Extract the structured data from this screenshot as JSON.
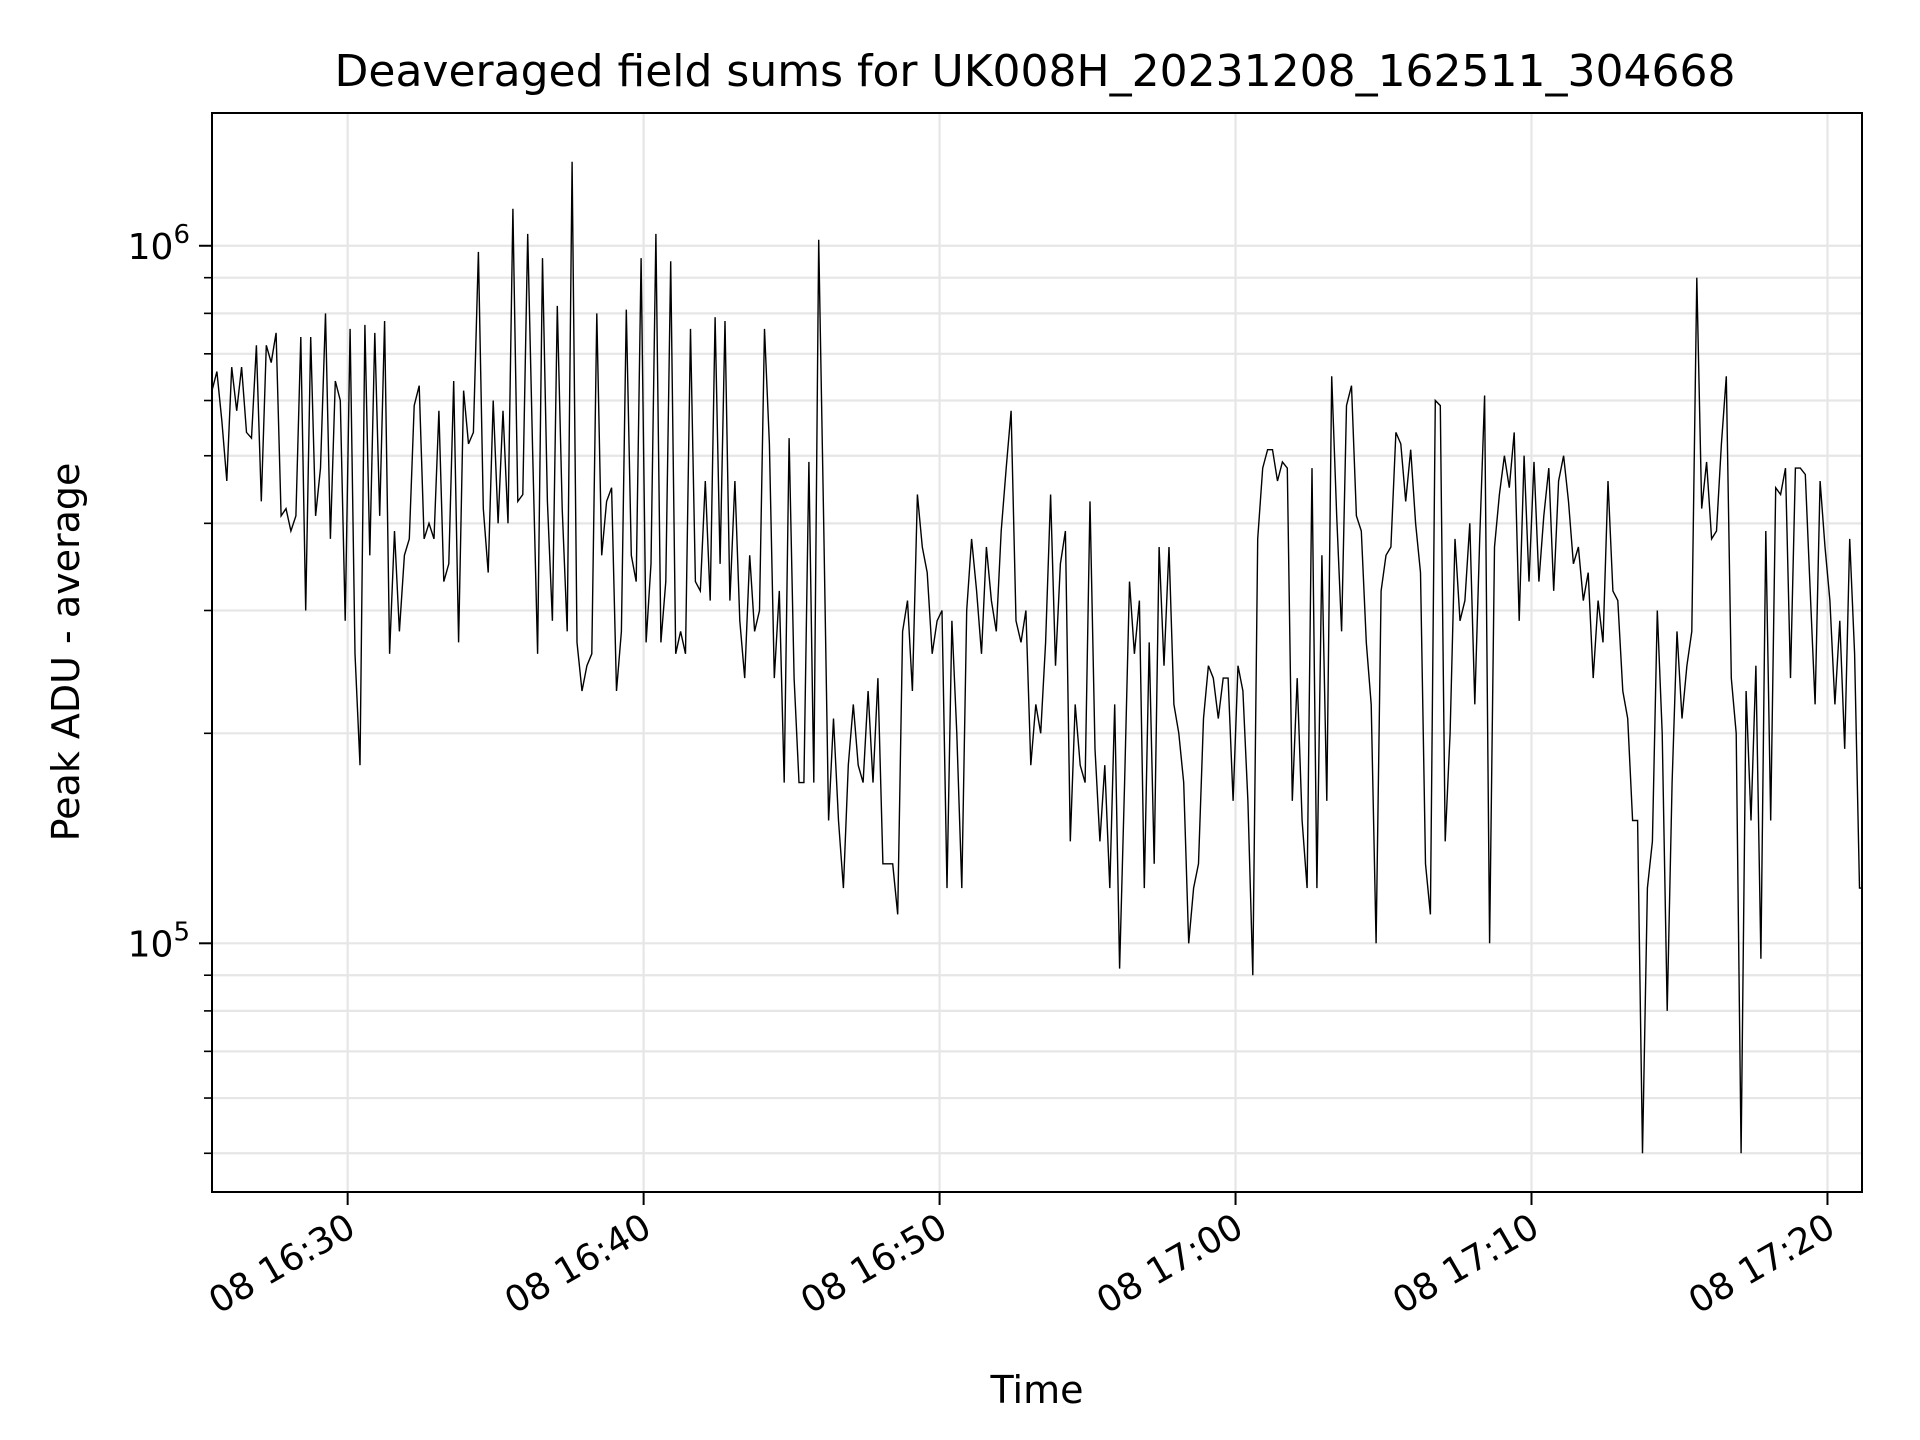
{
  "chart_data": {
    "type": "line",
    "title": "Deaveraged field sums for UK008H_20231208_162511_304668",
    "xlabel": "Time",
    "ylabel": "Peak ADU - average",
    "y_scale": "log",
    "ylim": [
      44000,
      1550000
    ],
    "x_range": [
      "2023-12-08 16:25:25",
      "2023-12-08 17:21:10"
    ],
    "grid": true,
    "line_color": "#000000",
    "grid_color": "#e6e6e6",
    "x_ticks": [
      {
        "t": "2023-12-08 16:30:00",
        "label": "08 16:30"
      },
      {
        "t": "2023-12-08 16:40:00",
        "label": "08 16:40"
      },
      {
        "t": "2023-12-08 16:50:00",
        "label": "08 16:50"
      },
      {
        "t": "2023-12-08 17:00:00",
        "label": "08 17:00"
      },
      {
        "t": "2023-12-08 17:10:00",
        "label": "08 17:10"
      },
      {
        "t": "2023-12-08 17:20:00",
        "label": "08 17:20"
      }
    ],
    "y_ticks": [
      {
        "value": 100000,
        "base": "10",
        "exp": "5"
      },
      {
        "value": 1000000,
        "base": "10",
        "exp": "6"
      }
    ],
    "y_minor_ticks": [
      50000,
      60000,
      70000,
      80000,
      90000,
      200000,
      300000,
      400000,
      500000,
      600000,
      700000,
      800000,
      900000
    ],
    "series": [
      {
        "x": [
          "2023-12-08 16:25:25",
          "2023-12-08 16:25:35",
          "2023-12-08 16:25:45",
          "2023-12-08 16:25:55",
          "2023-12-08 16:26:05",
          "2023-12-08 16:26:15",
          "2023-12-08 16:26:25",
          "2023-12-08 16:26:35",
          "2023-12-08 16:26:45",
          "2023-12-08 16:26:55",
          "2023-12-08 16:27:05",
          "2023-12-08 16:27:15",
          "2023-12-08 16:27:25",
          "2023-12-08 16:27:35",
          "2023-12-08 16:27:45",
          "2023-12-08 16:27:55",
          "2023-12-08 16:28:05",
          "2023-12-08 16:28:15",
          "2023-12-08 16:28:25",
          "2023-12-08 16:28:35",
          "2023-12-08 16:28:45",
          "2023-12-08 16:28:55",
          "2023-12-08 16:29:05",
          "2023-12-08 16:29:15",
          "2023-12-08 16:29:25",
          "2023-12-08 16:29:35",
          "2023-12-08 16:29:45",
          "2023-12-08 16:29:55",
          "2023-12-08 16:30:05",
          "2023-12-08 16:30:15",
          "2023-12-08 16:30:25",
          "2023-12-08 16:30:35",
          "2023-12-08 16:30:45",
          "2023-12-08 16:30:55",
          "2023-12-08 16:31:05",
          "2023-12-08 16:31:15",
          "2023-12-08 16:31:25",
          "2023-12-08 16:31:35",
          "2023-12-08 16:31:45",
          "2023-12-08 16:31:55",
          "2023-12-08 16:32:05",
          "2023-12-08 16:32:15",
          "2023-12-08 16:32:25",
          "2023-12-08 16:32:35",
          "2023-12-08 16:32:45",
          "2023-12-08 16:32:55",
          "2023-12-08 16:33:05",
          "2023-12-08 16:33:15",
          "2023-12-08 16:33:25",
          "2023-12-08 16:33:35",
          "2023-12-08 16:33:45",
          "2023-12-08 16:33:55",
          "2023-12-08 16:34:05",
          "2023-12-08 16:34:15",
          "2023-12-08 16:34:25",
          "2023-12-08 16:34:35",
          "2023-12-08 16:34:45",
          "2023-12-08 16:34:55",
          "2023-12-08 16:35:05",
          "2023-12-08 16:35:15",
          "2023-12-08 16:35:25",
          "2023-12-08 16:35:35",
          "2023-12-08 16:35:45",
          "2023-12-08 16:35:55",
          "2023-12-08 16:36:05",
          "2023-12-08 16:36:15",
          "2023-12-08 16:36:25",
          "2023-12-08 16:36:35",
          "2023-12-08 16:36:45",
          "2023-12-08 16:36:55",
          "2023-12-08 16:37:05",
          "2023-12-08 16:37:15",
          "2023-12-08 16:37:25",
          "2023-12-08 16:37:35",
          "2023-12-08 16:37:45",
          "2023-12-08 16:37:55",
          "2023-12-08 16:38:05",
          "2023-12-08 16:38:15",
          "2023-12-08 16:38:25",
          "2023-12-08 16:38:35",
          "2023-12-08 16:38:45",
          "2023-12-08 16:38:55",
          "2023-12-08 16:39:05",
          "2023-12-08 16:39:15",
          "2023-12-08 16:39:25",
          "2023-12-08 16:39:35",
          "2023-12-08 16:39:45",
          "2023-12-08 16:39:55",
          "2023-12-08 16:40:05",
          "2023-12-08 16:40:15",
          "2023-12-08 16:40:25",
          "2023-12-08 16:40:35",
          "2023-12-08 16:40:45",
          "2023-12-08 16:40:55",
          "2023-12-08 16:41:05",
          "2023-12-08 16:41:15",
          "2023-12-08 16:41:25",
          "2023-12-08 16:41:35",
          "2023-12-08 16:41:45",
          "2023-12-08 16:41:55",
          "2023-12-08 16:42:05",
          "2023-12-08 16:42:15",
          "2023-12-08 16:42:25",
          "2023-12-08 16:42:35",
          "2023-12-08 16:42:45",
          "2023-12-08 16:42:55",
          "2023-12-08 16:43:05",
          "2023-12-08 16:43:15",
          "2023-12-08 16:43:25",
          "2023-12-08 16:43:35",
          "2023-12-08 16:43:45",
          "2023-12-08 16:43:55",
          "2023-12-08 16:44:05",
          "2023-12-08 16:44:15",
          "2023-12-08 16:44:25",
          "2023-12-08 16:44:35",
          "2023-12-08 16:44:45",
          "2023-12-08 16:44:55",
          "2023-12-08 16:45:05",
          "2023-12-08 16:45:15",
          "2023-12-08 16:45:25",
          "2023-12-08 16:45:35",
          "2023-12-08 16:45:45",
          "2023-12-08 16:45:55",
          "2023-12-08 16:46:05",
          "2023-12-08 16:46:15",
          "2023-12-08 16:46:25",
          "2023-12-08 16:46:35",
          "2023-12-08 16:46:45",
          "2023-12-08 16:46:55",
          "2023-12-08 16:47:05",
          "2023-12-08 16:47:15",
          "2023-12-08 16:47:25",
          "2023-12-08 16:47:35",
          "2023-12-08 16:47:45",
          "2023-12-08 16:47:55",
          "2023-12-08 16:48:05",
          "2023-12-08 16:48:15",
          "2023-12-08 16:48:25",
          "2023-12-08 16:48:35",
          "2023-12-08 16:48:45",
          "2023-12-08 16:48:55",
          "2023-12-08 16:49:05",
          "2023-12-08 16:49:15",
          "2023-12-08 16:49:25",
          "2023-12-08 16:49:35",
          "2023-12-08 16:49:45",
          "2023-12-08 16:49:55",
          "2023-12-08 16:50:05",
          "2023-12-08 16:50:15",
          "2023-12-08 16:50:25",
          "2023-12-08 16:50:35",
          "2023-12-08 16:50:45",
          "2023-12-08 16:50:55",
          "2023-12-08 16:51:05",
          "2023-12-08 16:51:15",
          "2023-12-08 16:51:25",
          "2023-12-08 16:51:35",
          "2023-12-08 16:51:45",
          "2023-12-08 16:51:55",
          "2023-12-08 16:52:05",
          "2023-12-08 16:52:15",
          "2023-12-08 16:52:25",
          "2023-12-08 16:52:35",
          "2023-12-08 16:52:45",
          "2023-12-08 16:52:55",
          "2023-12-08 16:53:05",
          "2023-12-08 16:53:15",
          "2023-12-08 16:53:25",
          "2023-12-08 16:53:35",
          "2023-12-08 16:53:45",
          "2023-12-08 16:53:55",
          "2023-12-08 16:54:05",
          "2023-12-08 16:54:15",
          "2023-12-08 16:54:25",
          "2023-12-08 16:54:35",
          "2023-12-08 16:54:45",
          "2023-12-08 16:54:55",
          "2023-12-08 16:55:05",
          "2023-12-08 16:55:15",
          "2023-12-08 16:55:25",
          "2023-12-08 16:55:35",
          "2023-12-08 16:55:45",
          "2023-12-08 16:55:55",
          "2023-12-08 16:56:05",
          "2023-12-08 16:56:15",
          "2023-12-08 16:56:25",
          "2023-12-08 16:56:35",
          "2023-12-08 16:56:45",
          "2023-12-08 16:56:55",
          "2023-12-08 16:57:05",
          "2023-12-08 16:57:15",
          "2023-12-08 16:57:25",
          "2023-12-08 16:57:35",
          "2023-12-08 16:57:45",
          "2023-12-08 16:57:55",
          "2023-12-08 16:58:05",
          "2023-12-08 16:58:15",
          "2023-12-08 16:58:25",
          "2023-12-08 16:58:35",
          "2023-12-08 16:58:45",
          "2023-12-08 16:58:55",
          "2023-12-08 16:59:05",
          "2023-12-08 16:59:15",
          "2023-12-08 16:59:25",
          "2023-12-08 16:59:35",
          "2023-12-08 16:59:45",
          "2023-12-08 16:59:55",
          "2023-12-08 17:00:05",
          "2023-12-08 17:00:15",
          "2023-12-08 17:00:25",
          "2023-12-08 17:00:35",
          "2023-12-08 17:00:45",
          "2023-12-08 17:00:55",
          "2023-12-08 17:01:05",
          "2023-12-08 17:01:15",
          "2023-12-08 17:01:25",
          "2023-12-08 17:01:35",
          "2023-12-08 17:01:45",
          "2023-12-08 17:01:55",
          "2023-12-08 17:02:05",
          "2023-12-08 17:02:15",
          "2023-12-08 17:02:25",
          "2023-12-08 17:02:35",
          "2023-12-08 17:02:45",
          "2023-12-08 17:02:55",
          "2023-12-08 17:03:05",
          "2023-12-08 17:03:15",
          "2023-12-08 17:03:25",
          "2023-12-08 17:03:35",
          "2023-12-08 17:03:45",
          "2023-12-08 17:03:55",
          "2023-12-08 17:04:05",
          "2023-12-08 17:04:15",
          "2023-12-08 17:04:25",
          "2023-12-08 17:04:35",
          "2023-12-08 17:04:45",
          "2023-12-08 17:04:55",
          "2023-12-08 17:05:05",
          "2023-12-08 17:05:15",
          "2023-12-08 17:05:25",
          "2023-12-08 17:05:35",
          "2023-12-08 17:05:45",
          "2023-12-08 17:05:55",
          "2023-12-08 17:06:05",
          "2023-12-08 17:06:15",
          "2023-12-08 17:06:25",
          "2023-12-08 17:06:35",
          "2023-12-08 17:06:45",
          "2023-12-08 17:06:55",
          "2023-12-08 17:07:05",
          "2023-12-08 17:07:15",
          "2023-12-08 17:07:25",
          "2023-12-08 17:07:35",
          "2023-12-08 17:07:45",
          "2023-12-08 17:07:55",
          "2023-12-08 17:08:05",
          "2023-12-08 17:08:15",
          "2023-12-08 17:08:25",
          "2023-12-08 17:08:35",
          "2023-12-08 17:08:45",
          "2023-12-08 17:08:55",
          "2023-12-08 17:09:05",
          "2023-12-08 17:09:15",
          "2023-12-08 17:09:25",
          "2023-12-08 17:09:35",
          "2023-12-08 17:09:45",
          "2023-12-08 17:09:55",
          "2023-12-08 17:10:05",
          "2023-12-08 17:10:15",
          "2023-12-08 17:10:25",
          "2023-12-08 17:10:35",
          "2023-12-08 17:10:45",
          "2023-12-08 17:10:55",
          "2023-12-08 17:11:05",
          "2023-12-08 17:11:15",
          "2023-12-08 17:11:25",
          "2023-12-08 17:11:35",
          "2023-12-08 17:11:45",
          "2023-12-08 17:11:55",
          "2023-12-08 17:12:05",
          "2023-12-08 17:12:15",
          "2023-12-08 17:12:25",
          "2023-12-08 17:12:35",
          "2023-12-08 17:12:45",
          "2023-12-08 17:12:55",
          "2023-12-08 17:13:05",
          "2023-12-08 17:13:15",
          "2023-12-08 17:13:25",
          "2023-12-08 17:13:35",
          "2023-12-08 17:13:45",
          "2023-12-08 17:13:55",
          "2023-12-08 17:14:05",
          "2023-12-08 17:14:15",
          "2023-12-08 17:14:25",
          "2023-12-08 17:14:35",
          "2023-12-08 17:14:45",
          "2023-12-08 17:14:55",
          "2023-12-08 17:15:05",
          "2023-12-08 17:15:15",
          "2023-12-08 17:15:25",
          "2023-12-08 17:15:35",
          "2023-12-08 17:15:45",
          "2023-12-08 17:15:55",
          "2023-12-08 17:16:05",
          "2023-12-08 17:16:15",
          "2023-12-08 17:16:25",
          "2023-12-08 17:16:35",
          "2023-12-08 17:16:45",
          "2023-12-08 17:16:55",
          "2023-12-08 17:17:05",
          "2023-12-08 17:17:15",
          "2023-12-08 17:17:25",
          "2023-12-08 17:17:35",
          "2023-12-08 17:17:45",
          "2023-12-08 17:17:55",
          "2023-12-08 17:18:05",
          "2023-12-08 17:18:15",
          "2023-12-08 17:18:25",
          "2023-12-08 17:18:35",
          "2023-12-08 17:18:45",
          "2023-12-08 17:18:55",
          "2023-12-08 17:19:05",
          "2023-12-08 17:19:15",
          "2023-12-08 17:19:25",
          "2023-12-08 17:19:35",
          "2023-12-08 17:19:45",
          "2023-12-08 17:19:55",
          "2023-12-08 17:20:05",
          "2023-12-08 17:20:15",
          "2023-12-08 17:20:25",
          "2023-12-08 17:20:35",
          "2023-12-08 17:20:45",
          "2023-12-08 17:20:55",
          "2023-12-08 17:21:05",
          "2023-12-08 17:21:10"
        ],
        "values": [
          620000,
          660000,
          560000,
          460000,
          670000,
          580000,
          670000,
          540000,
          530000,
          720000,
          430000,
          720000,
          680000,
          750000,
          410000,
          420000,
          390000,
          410000,
          740000,
          300000,
          740000,
          410000,
          480000,
          800000,
          380000,
          640000,
          600000,
          290000,
          760000,
          260000,
          180000,
          770000,
          360000,
          750000,
          410000,
          780000,
          260000,
          390000,
          280000,
          360000,
          380000,
          590000,
          630000,
          380000,
          400000,
          380000,
          580000,
          330000,
          350000,
          640000,
          270000,
          620000,
          520000,
          540000,
          980000,
          420000,
          340000,
          600000,
          400000,
          580000,
          400000,
          1130000,
          430000,
          440000,
          1040000,
          510000,
          260000,
          960000,
          430000,
          290000,
          820000,
          420000,
          280000,
          1320000,
          270000,
          230000,
          250000,
          260000,
          800000,
          360000,
          430000,
          450000,
          230000,
          280000,
          810000,
          360000,
          330000,
          960000,
          270000,
          350000,
          1040000,
          270000,
          330000,
          950000,
          260000,
          280000,
          260000,
          760000,
          330000,
          320000,
          460000,
          310000,
          790000,
          350000,
          780000,
          310000,
          460000,
          290000,
          240000,
          360000,
          280000,
          300000,
          760000,
          520000,
          240000,
          320000,
          170000,
          530000,
          240000,
          170000,
          170000,
          490000,
          170000,
          1020000,
          400000,
          150000,
          210000,
          150000,
          120000,
          180000,
          220000,
          180000,
          170000,
          230000,
          170000,
          240000,
          130000,
          130000,
          130000,
          110000,
          280000,
          310000,
          230000,
          440000,
          370000,
          340000,
          260000,
          290000,
          300000,
          120000,
          290000,
          200000,
          120000,
          300000,
          380000,
          320000,
          260000,
          370000,
          310000,
          280000,
          390000,
          480000,
          580000,
          290000,
          270000,
          300000,
          180000,
          220000,
          200000,
          270000,
          440000,
          250000,
          350000,
          390000,
          140000,
          220000,
          180000,
          170000,
          430000,
          190000,
          140000,
          180000,
          120000,
          220000,
          92000,
          170000,
          330000,
          260000,
          310000,
          120000,
          270000,
          130000,
          370000,
          250000,
          370000,
          220000,
          200000,
          170000,
          100000,
          120000,
          130000,
          210000,
          250000,
          240000,
          210000,
          240000,
          240000,
          160000,
          250000,
          230000,
          160000,
          90000,
          380000,
          480000,
          510000,
          510000,
          460000,
          490000,
          480000,
          160000,
          240000,
          150000,
          120000,
          480000,
          120000,
          360000,
          160000,
          650000,
          410000,
          280000,
          590000,
          630000,
          410000,
          390000,
          270000,
          220000,
          100000,
          320000,
          360000,
          370000,
          540000,
          520000,
          430000,
          510000,
          400000,
          340000,
          130000,
          110000,
          600000,
          590000,
          140000,
          200000,
          380000,
          290000,
          310000,
          400000,
          220000,
          380000,
          610000,
          100000,
          370000,
          440000,
          500000,
          450000,
          540000,
          290000,
          500000,
          330000,
          490000,
          330000,
          410000,
          480000,
          320000,
          460000,
          500000,
          430000,
          350000,
          370000,
          310000,
          340000,
          240000,
          310000,
          270000,
          460000,
          320000,
          310000,
          230000,
          210000,
          150000,
          150000,
          50000,
          120000,
          140000,
          300000,
          200000,
          80000,
          170000,
          280000,
          210000,
          250000,
          280000,
          900000,
          420000,
          490000,
          380000,
          390000,
          520000,
          650000,
          240000,
          200000,
          50000,
          230000,
          150000,
          250000,
          95000,
          390000,
          150000,
          450000,
          440000,
          480000,
          240000,
          480000,
          480000,
          470000,
          320000,
          220000,
          460000,
          370000,
          310000,
          220000,
          290000,
          190000,
          380000,
          260000,
          120000,
          120000
        ]
      }
    ]
  }
}
